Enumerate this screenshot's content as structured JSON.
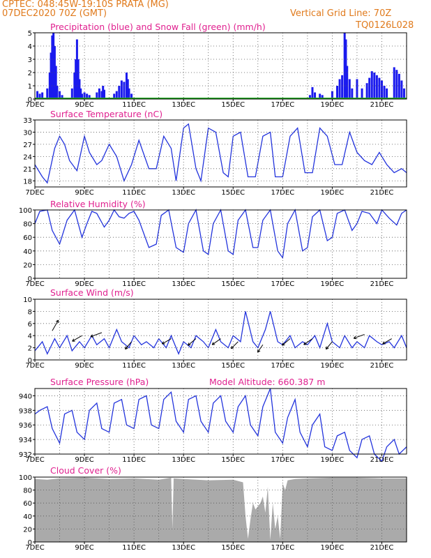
{
  "header": {
    "line1": "CPTEC:   048:45W-19:10S   PRATA (MG)",
    "line2": "07DEC2020 70Z (GMT)",
    "grid_note": "Vertical Grid Line: 70Z",
    "code": "TQ0126L028"
  },
  "colors": {
    "header": "#e07a1c",
    "title": "#e0208f",
    "line": "#2233dd",
    "precip": "#1a1aee",
    "snow": "#22aa22",
    "cloud": "#aaaaaa"
  },
  "x_ticks": [
    "7DEC",
    "9DEC",
    "11DEC",
    "13DEC",
    "15DEC",
    "17DEC",
    "19DEC",
    "21DEC"
  ],
  "chart_data": [
    {
      "id": "precip",
      "type": "bar",
      "title": "Precipitation (blue) and Snow Fall (green) (mm/h)",
      "ylim": [
        0,
        5
      ],
      "yticks": [
        0,
        1,
        2,
        3,
        4,
        5
      ],
      "x_range_days": [
        7,
        22
      ],
      "series": [
        {
          "name": "Precipitation",
          "x": [
            7.1,
            7.2,
            7.3,
            7.5,
            7.6,
            7.65,
            7.7,
            7.75,
            7.8,
            7.85,
            7.9,
            8.0,
            8.1,
            8.5,
            8.6,
            8.65,
            8.7,
            8.75,
            8.8,
            8.85,
            8.9,
            9.0,
            9.1,
            9.2,
            9.5,
            9.6,
            9.7,
            9.75,
            9.8,
            10.2,
            10.3,
            10.4,
            10.5,
            10.6,
            10.7,
            10.75,
            10.8,
            10.9,
            13.6,
            14.3,
            15.2,
            18.1,
            18.2,
            18.3,
            18.5,
            18.6,
            19.0,
            19.2,
            19.3,
            19.4,
            19.5,
            19.55,
            19.6,
            19.7,
            19.8,
            20.0,
            20.2,
            20.4,
            20.5,
            20.6,
            20.7,
            20.8,
            20.9,
            21.0,
            21.1,
            21.2,
            21.5,
            21.6,
            21.7,
            21.8,
            21.9
          ],
          "values": [
            0.6,
            0.4,
            0.5,
            0.8,
            2.0,
            3.5,
            4.8,
            5.0,
            4.0,
            2.5,
            1.0,
            0.6,
            0.3,
            0.8,
            2.0,
            3.0,
            4.5,
            3.0,
            1.5,
            0.8,
            0.4,
            0.5,
            0.4,
            0.3,
            0.5,
            0.8,
            0.6,
            1.0,
            0.7,
            0.4,
            0.6,
            1.0,
            1.4,
            1.3,
            2.0,
            1.5,
            0.8,
            0.4,
            0.1,
            0.1,
            0.1,
            0.3,
            0.9,
            0.5,
            0.4,
            0.3,
            0.6,
            1.0,
            1.5,
            1.8,
            5.0,
            4.5,
            2.5,
            1.5,
            0.8,
            1.5,
            0.8,
            1.2,
            1.6,
            2.1,
            2.0,
            1.8,
            1.6,
            1.4,
            1.0,
            0.8,
            2.4,
            2.2,
            1.9,
            1.4,
            0.8
          ]
        },
        {
          "name": "Snow Fall",
          "x": [
            7,
            22
          ],
          "values": [
            0,
            0
          ]
        }
      ]
    },
    {
      "id": "temp",
      "type": "line",
      "title": "Surface Temperature (nC)",
      "ylim": [
        16.5,
        33
      ],
      "yticks": [
        18,
        21,
        24,
        27,
        30,
        33
      ],
      "series": [
        {
          "name": "Temperature",
          "x": [
            7.0,
            7.3,
            7.5,
            7.8,
            8.0,
            8.2,
            8.4,
            8.7,
            9.0,
            9.2,
            9.5,
            9.7,
            10.0,
            10.3,
            10.6,
            10.9,
            11.2,
            11.6,
            11.9,
            12.2,
            12.5,
            12.7,
            13.0,
            13.2,
            13.5,
            13.7,
            14.0,
            14.3,
            14.6,
            14.8,
            15.0,
            15.3,
            15.6,
            15.9,
            16.2,
            16.5,
            16.7,
            17.0,
            17.3,
            17.6,
            17.9,
            18.2,
            18.5,
            18.8,
            19.1,
            19.4,
            19.7,
            20.0,
            20.3,
            20.6,
            20.9,
            21.2,
            21.5,
            21.8,
            22.0
          ],
          "values": [
            22,
            19,
            17.5,
            26,
            29,
            27,
            23,
            20.5,
            29,
            25,
            22,
            23,
            27,
            24,
            18,
            22,
            28,
            21,
            21,
            29,
            26,
            18,
            31,
            32,
            21,
            18,
            31,
            30,
            20,
            19,
            29,
            30,
            19,
            19,
            29,
            30,
            19,
            19,
            29,
            31,
            20,
            20,
            31,
            29,
            22,
            22,
            30,
            25,
            23,
            22,
            25,
            22,
            20,
            21,
            20
          ]
        }
      ]
    },
    {
      "id": "rh",
      "type": "line",
      "title": "Relative Humidity (%)",
      "ylim": [
        0,
        100
      ],
      "yticks": [
        0,
        20,
        40,
        60,
        80,
        100
      ],
      "series": [
        {
          "name": "Relative Humidity",
          "x": [
            7.0,
            7.2,
            7.5,
            7.7,
            8.0,
            8.3,
            8.6,
            8.9,
            9.1,
            9.3,
            9.5,
            9.8,
            10.0,
            10.2,
            10.4,
            10.6,
            10.8,
            11.0,
            11.2,
            11.6,
            11.9,
            12.1,
            12.4,
            12.7,
            13.0,
            13.2,
            13.5,
            13.8,
            14.0,
            14.2,
            14.5,
            14.8,
            15.0,
            15.2,
            15.5,
            15.8,
            16.0,
            16.2,
            16.5,
            16.8,
            17.0,
            17.2,
            17.5,
            17.8,
            18.0,
            18.2,
            18.5,
            18.8,
            19.0,
            19.2,
            19.5,
            19.8,
            20.0,
            20.2,
            20.5,
            20.8,
            21.0,
            21.3,
            21.6,
            21.8,
            22.0
          ],
          "values": [
            80,
            98,
            100,
            70,
            50,
            85,
            100,
            60,
            80,
            98,
            95,
            75,
            85,
            100,
            90,
            88,
            95,
            98,
            85,
            45,
            50,
            92,
            100,
            45,
            38,
            80,
            100,
            40,
            35,
            80,
            100,
            40,
            35,
            85,
            100,
            45,
            45,
            85,
            100,
            40,
            30,
            80,
            100,
            40,
            45,
            90,
            100,
            55,
            60,
            95,
            100,
            70,
            80,
            98,
            95,
            80,
            100,
            88,
            78,
            95,
            100
          ]
        }
      ]
    },
    {
      "id": "wind",
      "type": "line",
      "title": "Surface Wind (m/s)",
      "ylim": [
        0,
        10
      ],
      "yticks": [
        0,
        2,
        4,
        6,
        8,
        10
      ],
      "series": [
        {
          "name": "Wind speed",
          "x": [
            7.0,
            7.3,
            7.5,
            7.8,
            8.0,
            8.3,
            8.5,
            8.8,
            9.0,
            9.3,
            9.5,
            9.8,
            10.0,
            10.3,
            10.5,
            10.8,
            11.0,
            11.3,
            11.5,
            11.8,
            12.0,
            12.3,
            12.5,
            12.8,
            13.0,
            13.3,
            13.5,
            13.8,
            14.0,
            14.3,
            14.5,
            14.8,
            15.0,
            15.3,
            15.5,
            15.8,
            16.0,
            16.3,
            16.5,
            16.8,
            17.0,
            17.3,
            17.5,
            17.8,
            18.0,
            18.3,
            18.5,
            18.8,
            19.0,
            19.3,
            19.5,
            19.8,
            20.0,
            20.3,
            20.5,
            20.8,
            21.0,
            21.3,
            21.5,
            21.8,
            22.0
          ],
          "values": [
            1.5,
            3,
            1,
            3.5,
            2,
            4,
            1.5,
            3,
            2,
            4,
            2.5,
            3.5,
            2,
            5,
            3,
            2,
            4,
            2.5,
            3,
            2,
            3.5,
            2,
            4,
            1,
            3,
            2,
            4,
            3,
            2,
            5,
            3,
            2,
            4,
            3,
            8,
            3,
            2,
            5,
            8,
            3,
            2.5,
            4,
            2,
            3,
            2.5,
            4,
            2,
            6,
            3,
            2,
            4,
            2,
            3,
            2,
            4,
            3,
            2.5,
            3,
            2,
            4,
            2
          ]
        }
      ]
    },
    {
      "id": "pressure",
      "type": "line",
      "title": "Surface Pressure (hPa)",
      "model_altitude": "Model Altitude: 660.387 m",
      "ylim": [
        932,
        941
      ],
      "yticks": [
        932,
        934,
        936,
        938,
        940
      ],
      "series": [
        {
          "name": "Pressure",
          "x": [
            7.0,
            7.2,
            7.5,
            7.7,
            8.0,
            8.2,
            8.5,
            8.7,
            9.0,
            9.2,
            9.5,
            9.7,
            10.0,
            10.2,
            10.5,
            10.7,
            11.0,
            11.2,
            11.5,
            11.7,
            12.0,
            12.2,
            12.5,
            12.7,
            13.0,
            13.2,
            13.5,
            13.7,
            14.0,
            14.2,
            14.5,
            14.7,
            15.0,
            15.2,
            15.5,
            15.7,
            16.0,
            16.2,
            16.5,
            16.7,
            17.0,
            17.2,
            17.5,
            17.7,
            18.0,
            18.2,
            18.5,
            18.7,
            19.0,
            19.2,
            19.5,
            19.7,
            20.0,
            20.2,
            20.5,
            20.7,
            21.0,
            21.2,
            21.5,
            21.7,
            22.0
          ],
          "values": [
            937.5,
            938,
            938.5,
            935.5,
            933.5,
            937.5,
            938,
            935,
            934,
            938,
            939,
            935.5,
            935,
            939,
            939.5,
            936,
            935.5,
            939.5,
            940,
            936,
            935.5,
            939.5,
            940.5,
            936.5,
            935,
            939.5,
            940,
            936.5,
            935,
            939,
            940,
            936.5,
            935,
            938.5,
            940,
            936,
            934.5,
            938.5,
            941,
            935,
            933.5,
            937,
            939.5,
            935,
            933,
            936,
            937.5,
            933,
            932.5,
            934.5,
            935,
            932.5,
            931.5,
            934,
            934.5,
            932,
            931,
            933,
            934,
            932,
            933
          ]
        }
      ]
    },
    {
      "id": "cloud",
      "type": "area",
      "title": "Cloud Cover (%)",
      "ylim": [
        0,
        100
      ],
      "yticks": [
        0,
        20,
        40,
        60,
        80,
        100
      ],
      "series": [
        {
          "name": "Cloud Cover",
          "x": [
            7.0,
            7.5,
            8.0,
            9.0,
            10.0,
            11.0,
            12.0,
            12.5,
            12.55,
            12.6,
            13.0,
            14.0,
            15.0,
            15.4,
            15.5,
            15.6,
            15.7,
            15.8,
            15.9,
            16.0,
            16.1,
            16.2,
            16.3,
            16.4,
            16.5,
            16.6,
            16.7,
            16.8,
            16.9,
            17.0,
            17.1,
            17.2,
            17.5,
            18.0,
            19.0,
            20.0,
            21.0,
            22.0
          ],
          "values": [
            97,
            96,
            98,
            99,
            97,
            98,
            96,
            99,
            20,
            98,
            97,
            95,
            96,
            92,
            40,
            5,
            35,
            60,
            50,
            55,
            60,
            70,
            45,
            85,
            3,
            60,
            20,
            40,
            5,
            90,
            80,
            95,
            97,
            98,
            99,
            99,
            98,
            98
          ]
        }
      ]
    }
  ]
}
